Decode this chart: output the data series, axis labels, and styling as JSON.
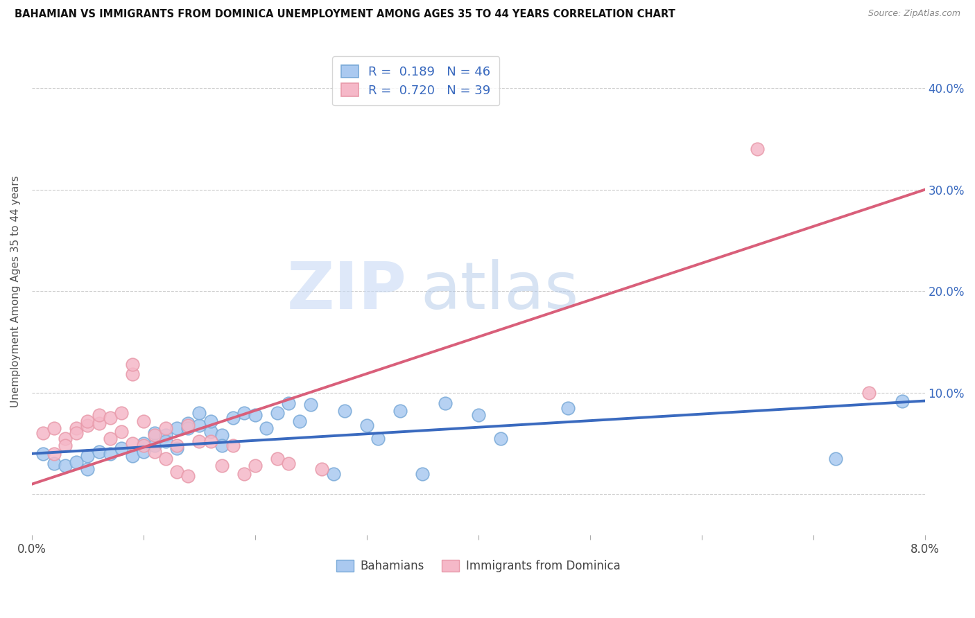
{
  "title": "BAHAMIAN VS IMMIGRANTS FROM DOMINICA UNEMPLOYMENT AMONG AGES 35 TO 44 YEARS CORRELATION CHART",
  "source": "Source: ZipAtlas.com",
  "ylabel": "Unemployment Among Ages 35 to 44 years",
  "ytick_values": [
    0.0,
    0.1,
    0.2,
    0.3,
    0.4
  ],
  "ytick_labels": [
    "",
    "10.0%",
    "20.0%",
    "30.0%",
    "40.0%"
  ],
  "xlim": [
    0.0,
    0.08
  ],
  "ylim": [
    -0.04,
    0.44
  ],
  "watermark_zip": "ZIP",
  "watermark_atlas": "atlas",
  "legend1_label": "R =  0.189   N = 46",
  "legend2_label": "R =  0.720   N = 39",
  "R_blue": 0.189,
  "N_blue": 46,
  "R_pink": 0.72,
  "N_pink": 39,
  "blue_fill": "#aac9f0",
  "pink_fill": "#f5b8c8",
  "blue_edge": "#7aaad8",
  "pink_edge": "#e89aaa",
  "blue_line_color": "#3a6abf",
  "pink_line_color": "#d95f7a",
  "legend_text_color": "#3a6abf",
  "blue_scatter": [
    [
      0.001,
      0.04
    ],
    [
      0.002,
      0.03
    ],
    [
      0.003,
      0.028
    ],
    [
      0.004,
      0.032
    ],
    [
      0.005,
      0.025
    ],
    [
      0.005,
      0.038
    ],
    [
      0.006,
      0.042
    ],
    [
      0.007,
      0.04
    ],
    [
      0.008,
      0.045
    ],
    [
      0.009,
      0.038
    ],
    [
      0.01,
      0.05
    ],
    [
      0.01,
      0.042
    ],
    [
      0.011,
      0.06
    ],
    [
      0.011,
      0.048
    ],
    [
      0.012,
      0.058
    ],
    [
      0.012,
      0.052
    ],
    [
      0.013,
      0.065
    ],
    [
      0.013,
      0.045
    ],
    [
      0.014,
      0.07
    ],
    [
      0.014,
      0.065
    ],
    [
      0.015,
      0.068
    ],
    [
      0.015,
      0.08
    ],
    [
      0.016,
      0.062
    ],
    [
      0.016,
      0.072
    ],
    [
      0.017,
      0.058
    ],
    [
      0.017,
      0.048
    ],
    [
      0.018,
      0.075
    ],
    [
      0.019,
      0.08
    ],
    [
      0.02,
      0.078
    ],
    [
      0.021,
      0.065
    ],
    [
      0.022,
      0.08
    ],
    [
      0.023,
      0.09
    ],
    [
      0.024,
      0.072
    ],
    [
      0.025,
      0.088
    ],
    [
      0.027,
      0.02
    ],
    [
      0.028,
      0.082
    ],
    [
      0.03,
      0.068
    ],
    [
      0.031,
      0.055
    ],
    [
      0.033,
      0.082
    ],
    [
      0.035,
      0.02
    ],
    [
      0.037,
      0.09
    ],
    [
      0.04,
      0.078
    ],
    [
      0.042,
      0.055
    ],
    [
      0.048,
      0.085
    ],
    [
      0.072,
      0.035
    ],
    [
      0.078,
      0.092
    ]
  ],
  "pink_scatter": [
    [
      0.001,
      0.06
    ],
    [
      0.002,
      0.065
    ],
    [
      0.002,
      0.04
    ],
    [
      0.003,
      0.055
    ],
    [
      0.003,
      0.048
    ],
    [
      0.004,
      0.065
    ],
    [
      0.004,
      0.06
    ],
    [
      0.005,
      0.068
    ],
    [
      0.005,
      0.072
    ],
    [
      0.006,
      0.07
    ],
    [
      0.006,
      0.078
    ],
    [
      0.007,
      0.075
    ],
    [
      0.007,
      0.055
    ],
    [
      0.008,
      0.08
    ],
    [
      0.008,
      0.062
    ],
    [
      0.009,
      0.118
    ],
    [
      0.009,
      0.128
    ],
    [
      0.009,
      0.05
    ],
    [
      0.01,
      0.072
    ],
    [
      0.01,
      0.048
    ],
    [
      0.011,
      0.058
    ],
    [
      0.011,
      0.042
    ],
    [
      0.012,
      0.065
    ],
    [
      0.012,
      0.035
    ],
    [
      0.013,
      0.048
    ],
    [
      0.013,
      0.022
    ],
    [
      0.014,
      0.068
    ],
    [
      0.014,
      0.018
    ],
    [
      0.015,
      0.052
    ],
    [
      0.016,
      0.052
    ],
    [
      0.017,
      0.028
    ],
    [
      0.018,
      0.048
    ],
    [
      0.019,
      0.02
    ],
    [
      0.02,
      0.028
    ],
    [
      0.022,
      0.035
    ],
    [
      0.023,
      0.03
    ],
    [
      0.026,
      0.025
    ],
    [
      0.065,
      0.34
    ],
    [
      0.075,
      0.1
    ]
  ],
  "blue_trendline": [
    [
      0.0,
      0.04
    ],
    [
      0.08,
      0.092
    ]
  ],
  "pink_trendline": [
    [
      0.0,
      0.01
    ],
    [
      0.08,
      0.3
    ]
  ]
}
